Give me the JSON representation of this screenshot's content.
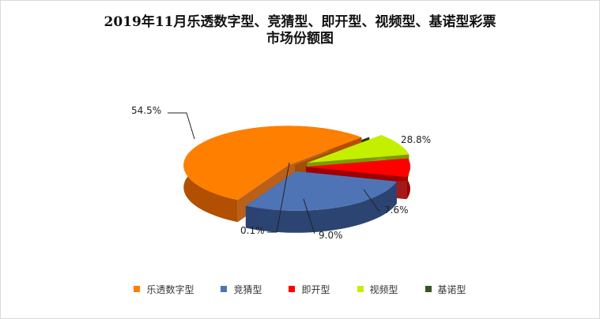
{
  "chart_data": {
    "type": "pie",
    "title_line1": "2019年11月乐透数字型、竞猜型、即开型、视频型、基诺型彩票",
    "title_line2": "市场份额图",
    "slices": [
      {
        "name": "乐透数字型",
        "value": 54.5,
        "label": "54.5%",
        "color": "#ff7f00",
        "side": "#b24f00"
      },
      {
        "name": "竞猜型",
        "value": 28.8,
        "label": "28.8%",
        "color": "#4f74b5",
        "side": "#2c4471"
      },
      {
        "name": "即开型",
        "value": 7.6,
        "label": "7.6%",
        "color": "#ff0000",
        "side": "#9c0000"
      },
      {
        "name": "视频型",
        "value": 9.0,
        "label": "9.0%",
        "color": "#c4f000",
        "side": "#7e9a00"
      },
      {
        "name": "基诺型",
        "value": 0.1,
        "label": "0.1%",
        "color": "#375623",
        "side": "#1e3212"
      }
    ],
    "legend_position": "bottom"
  }
}
